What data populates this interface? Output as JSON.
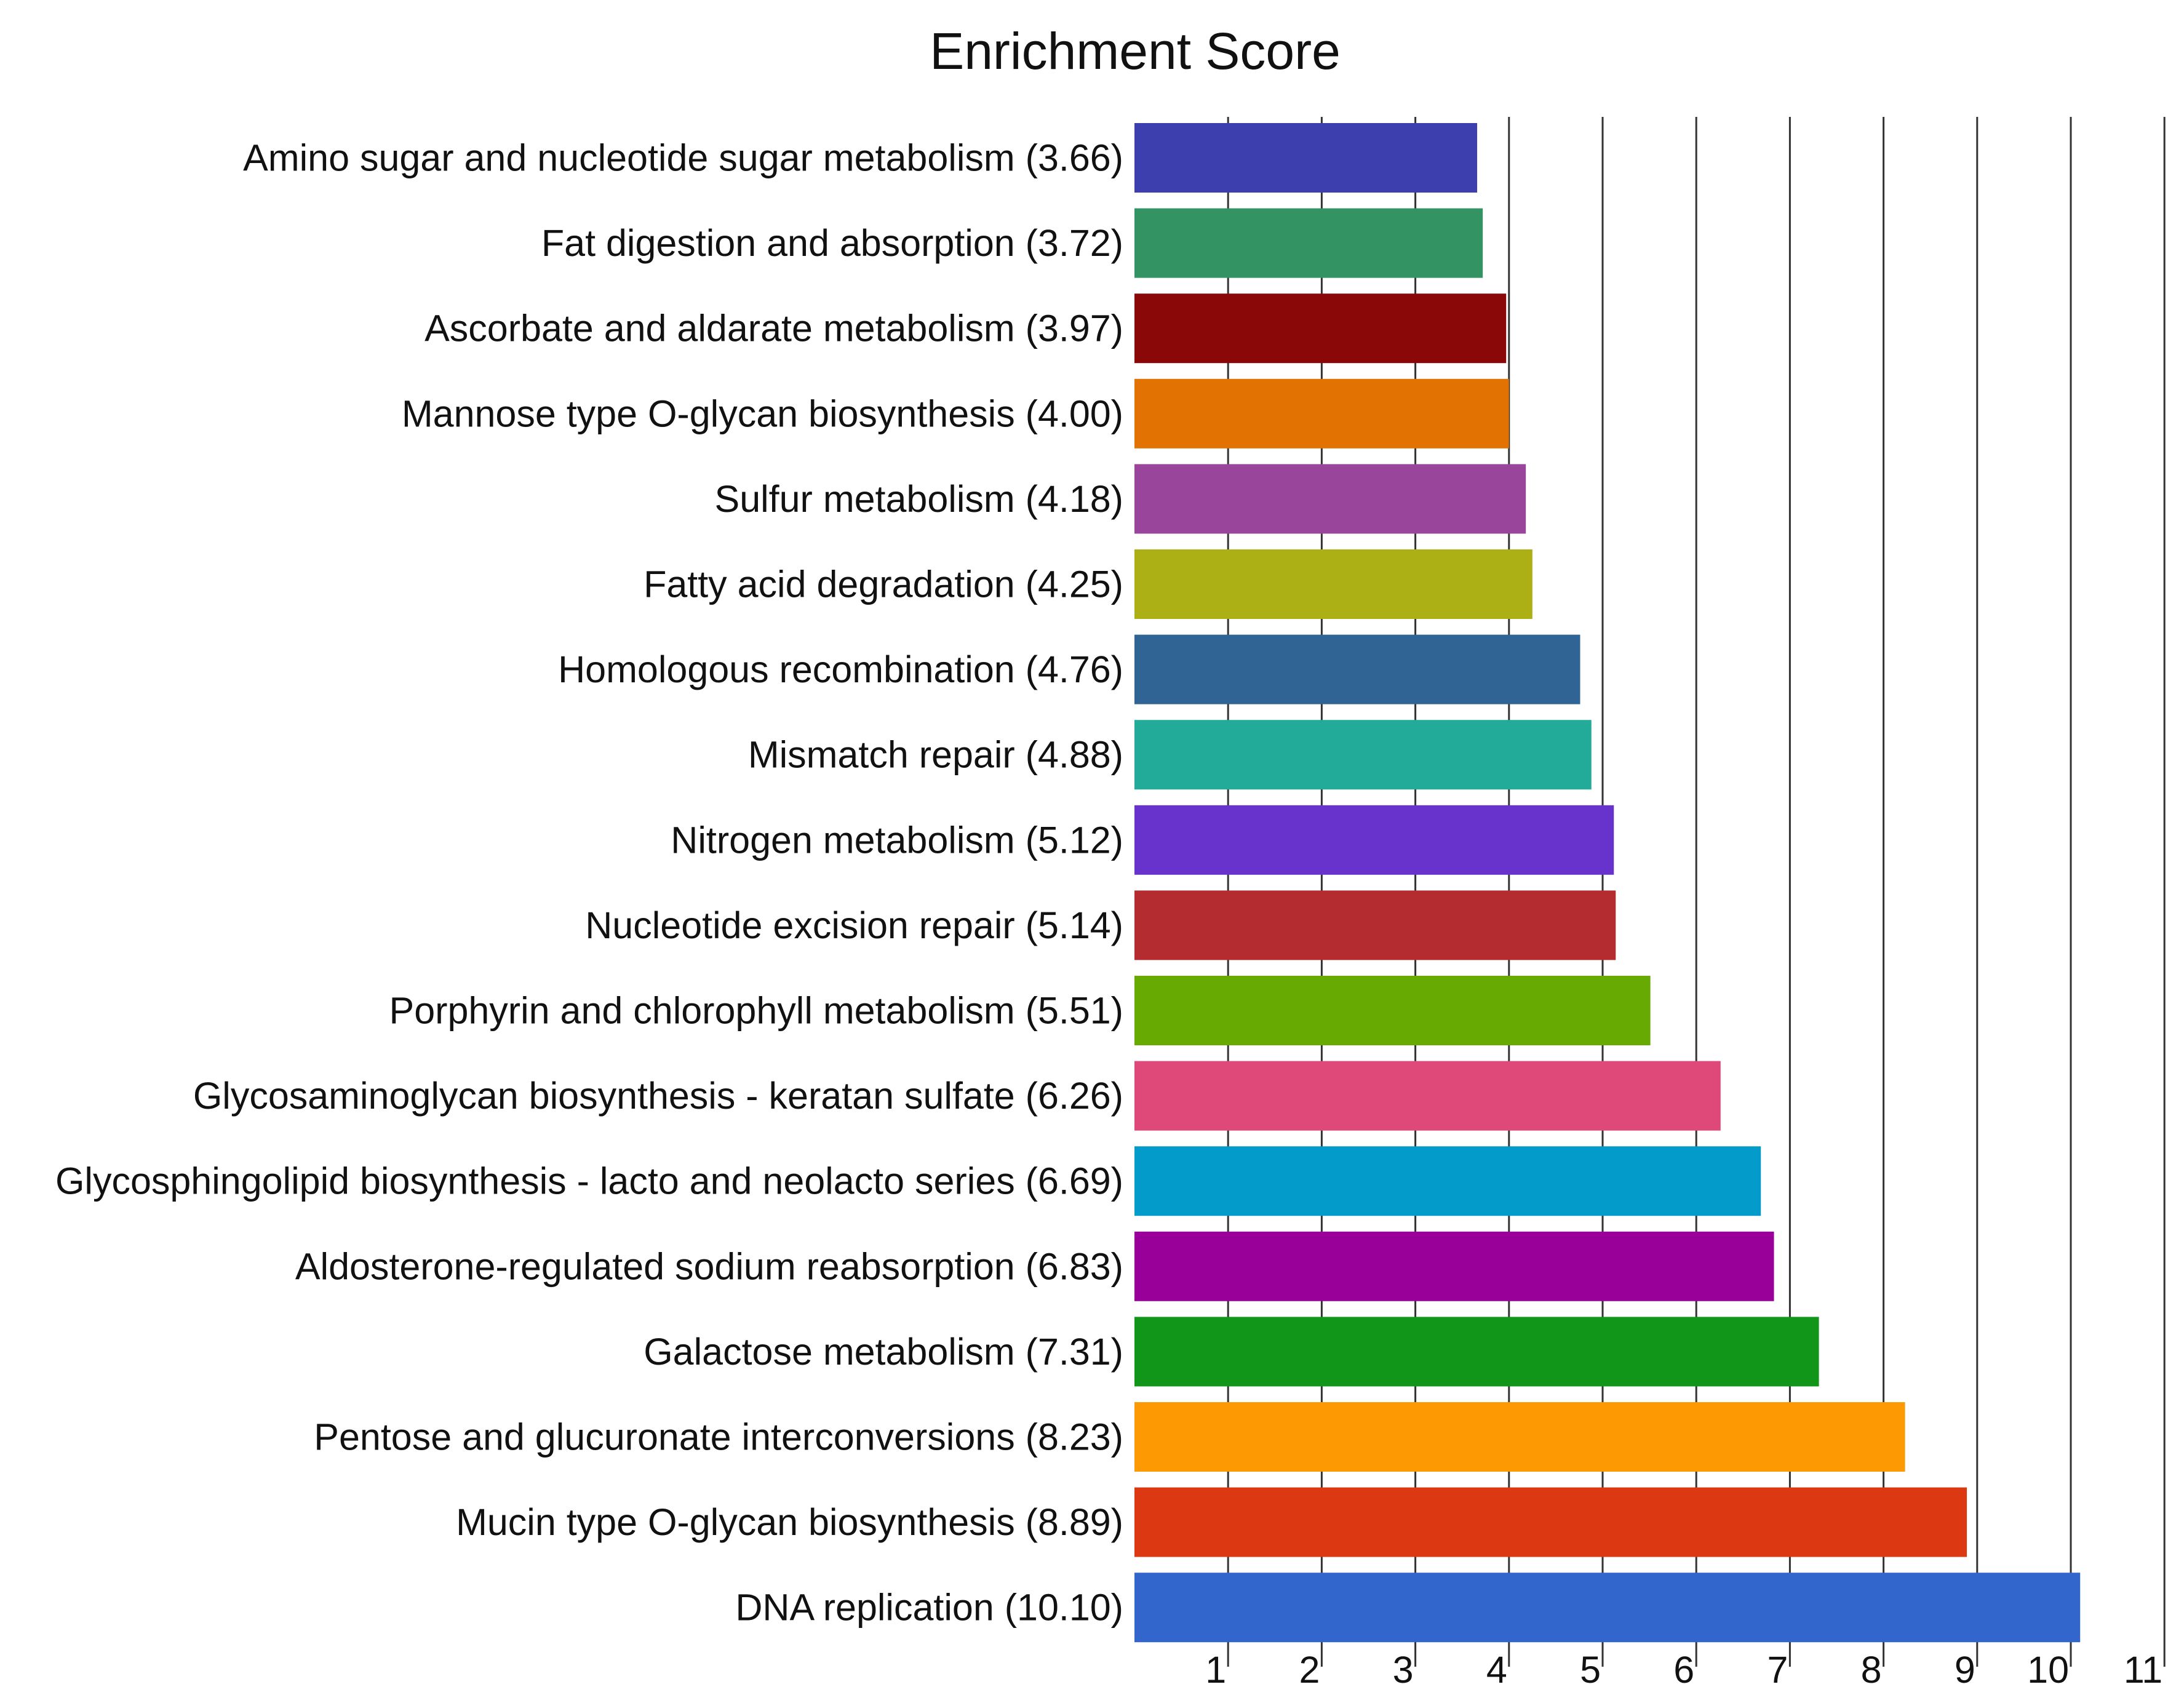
{
  "chart_data": {
    "type": "bar",
    "orientation": "horizontal",
    "title": "Enrichment Score",
    "xlabel": "",
    "ylabel": "",
    "xlim": [
      0,
      11
    ],
    "grid": true,
    "x_ticks": [
      "1",
      "2",
      "3",
      "4",
      "5",
      "6",
      "7",
      "8",
      "9",
      "10",
      "11"
    ],
    "bars": [
      {
        "label": "Amino sugar and nucleotide sugar metabolism (3.66)",
        "value": 3.66,
        "color": "#3d3faf"
      },
      {
        "label": "Fat digestion and absorption (3.72)",
        "value": 3.72,
        "color": "#339362"
      },
      {
        "label": "Ascorbate and aldarate metabolism (3.97)",
        "value": 3.97,
        "color": "#8b0808"
      },
      {
        "label": "Mannose type O-glycan biosynthesis (4.00)",
        "value": 4.0,
        "color": "#e27302"
      },
      {
        "label": "Sulfur metabolism (4.18)",
        "value": 4.18,
        "color": "#99459c"
      },
      {
        "label": "Fatty acid degradation (4.25)",
        "value": 4.25,
        "color": "#acb014"
      },
      {
        "label": "Homologous recombination (4.76)",
        "value": 4.76,
        "color": "#2f6495"
      },
      {
        "label": "Mismatch repair (4.88)",
        "value": 4.88,
        "color": "#21ab98"
      },
      {
        "label": "Nitrogen metabolism (5.12)",
        "value": 5.12,
        "color": "#6733cc"
      },
      {
        "label": "Nucleotide excision repair (5.14)",
        "value": 5.14,
        "color": "#b52c30"
      },
      {
        "label": "Porphyrin and chlorophyll metabolism (5.51)",
        "value": 5.51,
        "color": "#67aa02"
      },
      {
        "label": "Glycosaminoglycan biosynthesis - keratan sulfate (6.26)",
        "value": 6.26,
        "color": "#df4979"
      },
      {
        "label": "Glycosphingolipid biosynthesis - lacto and neolacto series (6.69)",
        "value": 6.69,
        "color": "#039cca"
      },
      {
        "label": "Aldosterone-regulated sodium reabsorption (6.83)",
        "value": 6.83,
        "color": "#990099"
      },
      {
        "label": "Galactose metabolism (7.31)",
        "value": 7.31,
        "color": "#11961a"
      },
      {
        "label": "Pentose and glucuronate interconversions (8.23)",
        "value": 8.23,
        "color": "#fc9903"
      },
      {
        "label": "Mucin type O-glycan biosynthesis (8.89)",
        "value": 8.89,
        "color": "#dc3812"
      },
      {
        "label": "DNA replication (10.10)",
        "value": 10.1,
        "color": "#3366cc"
      }
    ]
  }
}
